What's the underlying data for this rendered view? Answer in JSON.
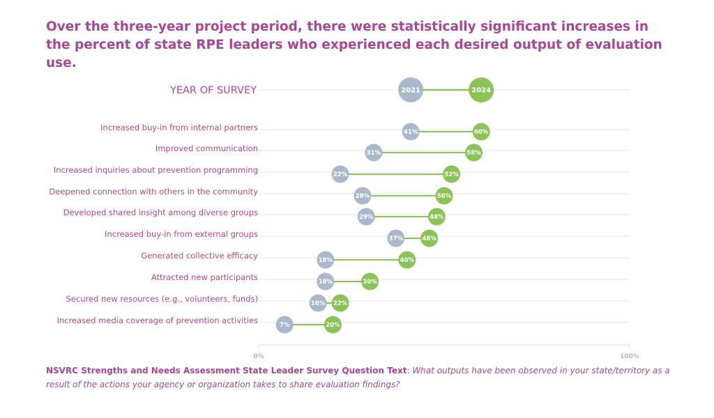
{
  "title": "Over the three-year project period, there were statistically significant increases in the percent of state RPE leaders who experienced each desired output of evaluation use.",
  "footer": {
    "source_label": "NSVRC Strengths and Needs Assessment State Leader Survey Question Text",
    "question": "What outputs have been observed in your state/territory as a result of the actions your agency or organization takes to share evaluation findings?"
  },
  "colors": {
    "title": "#a9459b",
    "label": "#b5468f",
    "y2021": "#a9b9cb",
    "y2024": "#8cc356",
    "gridline": "#e6e6e6"
  },
  "chart_data": {
    "type": "dumbbell",
    "header_label": "YEAR OF SURVEY",
    "series": [
      {
        "name": "2021"
      },
      {
        "name": "2024"
      }
    ],
    "categories": [
      "Increased buy-in from internal partners",
      "Improved communication",
      "Increased inquiries about prevention programming",
      "Deepened connection with others in the community",
      "Developed shared insight among diverse groups",
      "Increased buy-in from external groups",
      "Generated collective efficacy",
      "Attracted new participants",
      "Secured new resources (e.g., volunteers, funds)",
      "Increased media coverage of prevention activities"
    ],
    "values_2021": [
      41,
      31,
      22,
      28,
      29,
      37,
      18,
      18,
      16,
      7
    ],
    "values_2024": [
      60,
      58,
      52,
      50,
      48,
      46,
      40,
      30,
      22,
      20
    ],
    "unit": "%",
    "xlim": [
      0,
      100
    ],
    "x_tick_labels": [
      "0%",
      "100%"
    ],
    "header_positions": [
      41,
      60
    ]
  }
}
